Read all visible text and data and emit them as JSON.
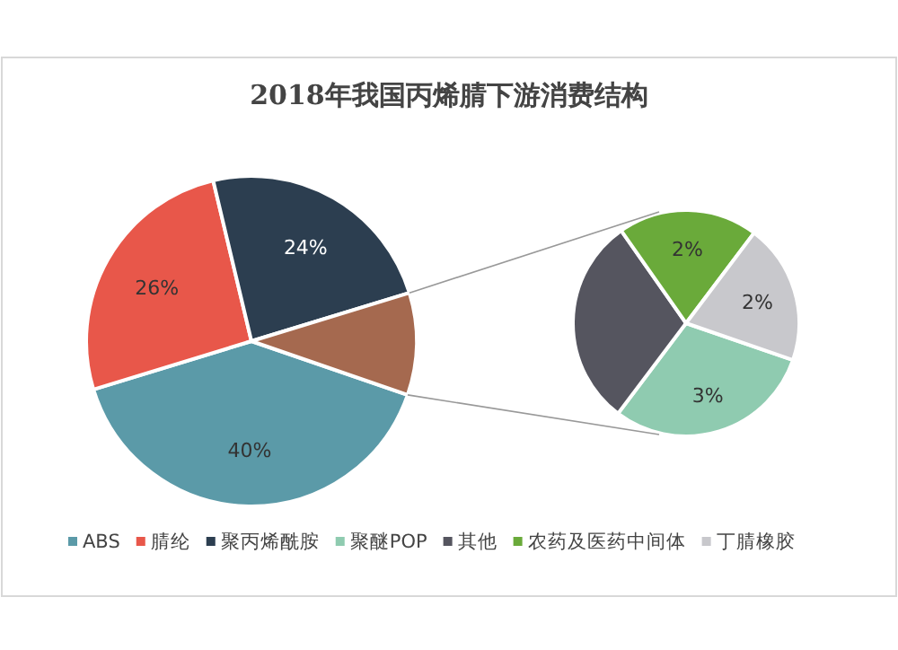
{
  "chart_data": [
    {
      "type": "pie",
      "title": "2018年我国丙烯腈下游消费结构",
      "categories": [
        "ABS",
        "腈纶",
        "聚丙烯酰胺",
        null
      ],
      "values": [
        40,
        26,
        24,
        10
      ],
      "colors": [
        "#5b9aa8",
        "#e8574a",
        "#2c3e50",
        "#a5694f"
      ],
      "value_labels": [
        "40%",
        "26%",
        "24%",
        null
      ],
      "legend": "bottom"
    },
    {
      "type": "pie",
      "categories": [
        "聚醚POP",
        "其他",
        "农药及医药中间体",
        "丁腈橡胶"
      ],
      "values": [
        3,
        3,
        2,
        2
      ],
      "colors": [
        "#8fcbb0",
        "#55555f",
        "#6aaa3a",
        "#c8c8cc"
      ],
      "value_labels": [
        "3%",
        null,
        "2%",
        "2%"
      ],
      "legend": "bottom"
    }
  ]
}
